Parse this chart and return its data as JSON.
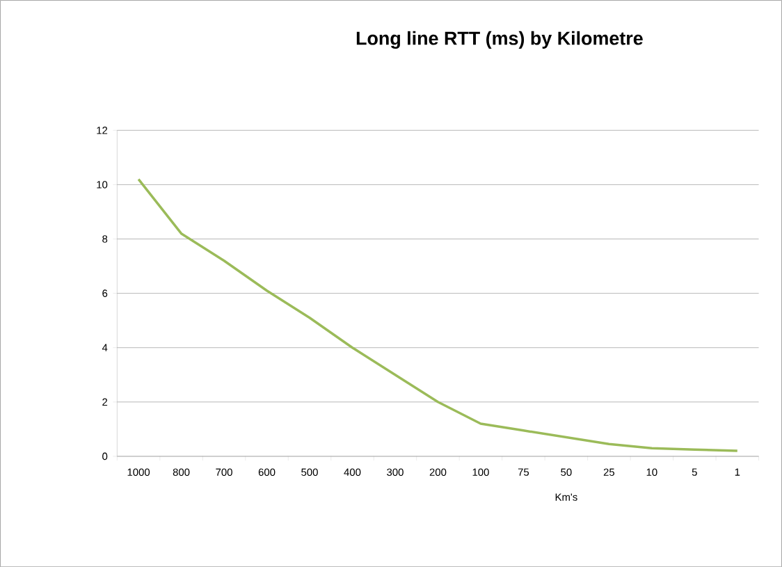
{
  "chart_data": {
    "type": "line",
    "title": "Long line RTT (ms) by Kilometre",
    "xlabel": "Km's",
    "categories": [
      "1000",
      "800",
      "700",
      "600",
      "500",
      "400",
      "300",
      "200",
      "100",
      "75",
      "50",
      "25",
      "10",
      "5",
      "1"
    ],
    "series": [
      {
        "color": "#9bbb59",
        "values": [
          10.2,
          8.2,
          7.2,
          6.1,
          5.1,
          4.0,
          3.0,
          2.0,
          1.2,
          0.95,
          0.7,
          0.45,
          0.3,
          0.25,
          0.2
        ]
      }
    ],
    "ylim": [
      0,
      12
    ],
    "yticks": [
      0,
      2,
      4,
      6,
      8,
      10,
      12
    ],
    "grid": "y",
    "marker": "none",
    "line_style": "solid"
  }
}
